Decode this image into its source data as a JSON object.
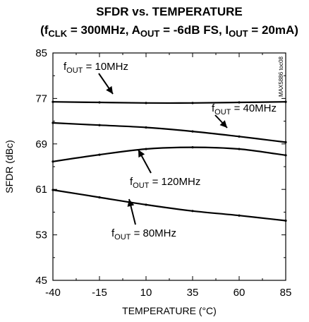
{
  "chart_data": {
    "type": "line",
    "title": "SFDR vs. TEMPERATURE",
    "subtitle": {
      "parts": [
        {
          "text": "(f",
          "sub": false,
          "bold": true
        },
        {
          "text": "CLK",
          "sub": true,
          "bold": true
        },
        {
          "text": " = 300MHz, A",
          "sub": false,
          "bold": true
        },
        {
          "text": "OUT",
          "sub": true,
          "bold": true
        },
        {
          "text": " = -6dB FS, I",
          "sub": false,
          "bold": true
        },
        {
          "text": "OUT",
          "sub": true,
          "bold": true
        },
        {
          "text": " = 20mA)",
          "sub": false,
          "bold": true
        }
      ]
    },
    "figure_code": "MAX5886 toc08",
    "xlabel": "TEMPERATURE (°C)",
    "ylabel": "SFDR (dBc)",
    "xlim": [
      -40,
      85
    ],
    "ylim": [
      45,
      85
    ],
    "x_ticks": [
      -40,
      -15,
      10,
      35,
      60,
      85
    ],
    "y_ticks": [
      45,
      53,
      61,
      69,
      77,
      85
    ],
    "grid": false,
    "legend": "none",
    "series": [
      {
        "name": "fOUT = 10MHz",
        "label_parts": [
          "f",
          "OUT",
          " = 10MHz"
        ],
        "x": [
          -40,
          -15,
          10,
          35,
          60,
          85
        ],
        "y": [
          76.4,
          76.3,
          76.2,
          76.2,
          76.3,
          76.4
        ]
      },
      {
        "name": "fOUT = 40MHz",
        "label_parts": [
          "f",
          "OUT",
          " = 40MHz"
        ],
        "x": [
          -40,
          -15,
          10,
          35,
          60,
          85
        ],
        "y": [
          72.7,
          72.3,
          71.9,
          71.2,
          70.3,
          69.3
        ]
      },
      {
        "name": "fOUT = 120MHz",
        "label_parts": [
          "f",
          "OUT",
          " = 120MHz"
        ],
        "x": [
          -40,
          -15,
          10,
          35,
          60,
          85
        ],
        "y": [
          65.9,
          67.1,
          68.1,
          68.4,
          68.1,
          67.0
        ]
      },
      {
        "name": "fOUT = 80MHz",
        "label_parts": [
          "f",
          "OUT",
          " = 80MHz"
        ],
        "x": [
          -40,
          -15,
          10,
          35,
          60,
          85
        ],
        "y": [
          60.9,
          59.6,
          58.3,
          57.2,
          56.4,
          55.5
        ]
      }
    ]
  }
}
